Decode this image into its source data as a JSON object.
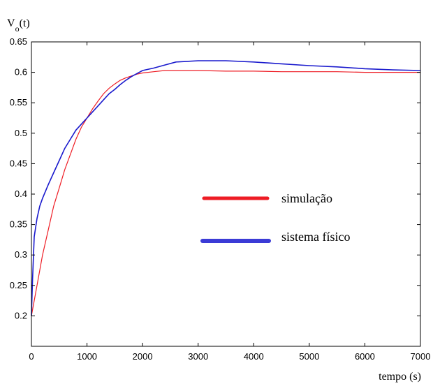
{
  "chart_data": {
    "type": "line",
    "title": "",
    "ylabel_main": "V",
    "ylabel_sub": "o",
    "ylabel_suffix": "(t)",
    "xlabel": "tempo (s)",
    "xlim": [
      0,
      7000
    ],
    "ylim": [
      0.15,
      0.65
    ],
    "xticks": [
      0,
      1000,
      2000,
      3000,
      4000,
      5000,
      6000,
      7000
    ],
    "yticks": [
      0.2,
      0.25,
      0.3,
      0.35,
      0.4,
      0.45,
      0.5,
      0.55,
      0.6,
      0.65
    ],
    "grid": false,
    "legend_position": "center-right",
    "series": [
      {
        "name": "simulação",
        "color": "#ee1c24",
        "x": [
          0,
          50,
          100,
          200,
          300,
          400,
          500,
          600,
          700,
          800,
          900,
          1000,
          1100,
          1200,
          1300,
          1400,
          1500,
          1600,
          1700,
          1800,
          1900,
          2000,
          2200,
          2400,
          2600,
          3000,
          3500,
          4000,
          4500,
          5000,
          5500,
          6000,
          6500,
          7000
        ],
        "values": [
          0.2,
          0.225,
          0.25,
          0.3,
          0.34,
          0.38,
          0.41,
          0.44,
          0.465,
          0.49,
          0.51,
          0.525,
          0.54,
          0.553,
          0.565,
          0.574,
          0.581,
          0.587,
          0.591,
          0.594,
          0.597,
          0.599,
          0.601,
          0.603,
          0.603,
          0.603,
          0.602,
          0.602,
          0.601,
          0.601,
          0.601,
          0.6,
          0.6,
          0.6
        ]
      },
      {
        "name": "sistema físico",
        "color": "#1a1acd",
        "x": [
          0,
          20,
          50,
          100,
          150,
          200,
          300,
          400,
          500,
          600,
          700,
          800,
          900,
          1000,
          1100,
          1200,
          1300,
          1400,
          1500,
          1600,
          1700,
          1800,
          1900,
          2000,
          2200,
          2400,
          2600,
          2800,
          3000,
          3500,
          4000,
          4500,
          5000,
          5500,
          6000,
          6500,
          7000
        ],
        "values": [
          0.2,
          0.26,
          0.33,
          0.36,
          0.38,
          0.393,
          0.415,
          0.435,
          0.455,
          0.475,
          0.49,
          0.505,
          0.515,
          0.525,
          0.535,
          0.545,
          0.555,
          0.565,
          0.572,
          0.58,
          0.587,
          0.593,
          0.598,
          0.603,
          0.607,
          0.612,
          0.617,
          0.618,
          0.619,
          0.619,
          0.617,
          0.614,
          0.611,
          0.609,
          0.606,
          0.604,
          0.603
        ]
      }
    ]
  }
}
